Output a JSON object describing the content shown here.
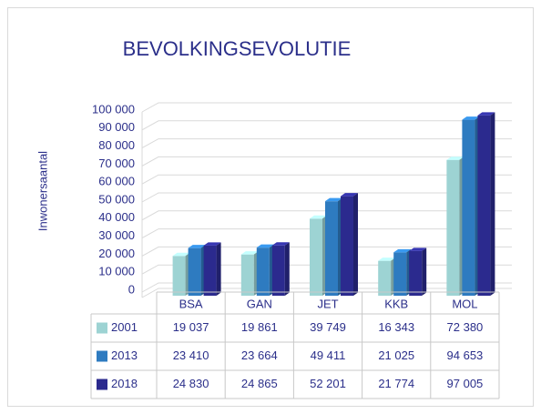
{
  "chart_data": {
    "type": "bar3d",
    "title": "BEVOLKINGSEVOLUTIE",
    "y_label": "Inwonersaantal",
    "categories": [
      "BSA",
      "GAN",
      "JET",
      "KKB",
      "MOL"
    ],
    "series": [
      {
        "name": "2001",
        "color": "#9dd3d3",
        "values": [
          19037,
          19861,
          39749,
          16343,
          72380
        ],
        "value_labels": [
          "19 037",
          "19 861",
          "39 749",
          "16 343",
          "72 380"
        ]
      },
      {
        "name": "2013",
        "color": "#2e7bc0",
        "values": [
          23410,
          23664,
          49411,
          21025,
          94653
        ],
        "value_labels": [
          "23 410",
          "23 664",
          "49 411",
          "21 025",
          "94 653"
        ]
      },
      {
        "name": "2018",
        "color": "#2b2a8e",
        "values": [
          24830,
          24865,
          52201,
          21774,
          97005
        ],
        "value_labels": [
          "24 830",
          "24 865",
          "52 201",
          "21 774",
          "97 005"
        ]
      }
    ],
    "ylim": [
      0,
      100000
    ],
    "yticks": [
      0,
      {
        "value": 10000,
        "label": "10 000"
      },
      {
        "value": 20000,
        "label": "20 000"
      },
      {
        "value": 30000,
        "label": "30 000"
      },
      {
        "value": 40000,
        "label": "40 000"
      },
      {
        "value": 50000,
        "label": "50 000"
      },
      {
        "value": 60000,
        "label": "60 000"
      },
      {
        "value": 70000,
        "label": "70 000"
      },
      {
        "value": 80000,
        "label": "80 000"
      },
      {
        "value": 90000,
        "label": "90 000"
      },
      {
        "value": 100000,
        "label": "100 000"
      }
    ],
    "grid": true
  }
}
